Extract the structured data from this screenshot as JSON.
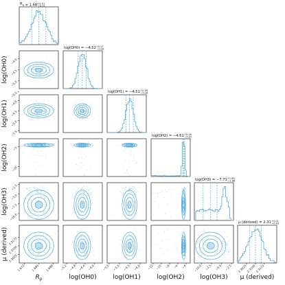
{
  "chart_data": {
    "type": "corner",
    "color": "#4fa8d6",
    "parameters": [
      {
        "name": "R_p",
        "axis_label": "R",
        "axis_sub": "p",
        "title_prefix": "R",
        "title_sub": "p",
        "title_value": " = 1.68",
        "title_plus": "+0.01",
        "title_minus": "−0.01",
        "median": 1.68,
        "q16": 1.676,
        "q84": 1.684,
        "sigma": 0.0042,
        "range": [
          1.669,
          1.691
        ],
        "ticks": [
          1.672,
          1.68,
          1.688
        ],
        "tick_labels": [
          "1.672",
          "1.680",
          "1.688"
        ]
      },
      {
        "name": "log(OH0)",
        "axis_label": "log(OH0)",
        "title_prefix": "log(OH0)",
        "title_value": " = −4.52",
        "title_plus": "+0.17",
        "title_minus": "−0.18",
        "median": -4.52,
        "q16": -4.7,
        "q84": -4.35,
        "sigma": 0.18,
        "range": [
          -5.35,
          -3.65
        ],
        "ticks": [
          -5.2,
          -4.8,
          -4.4,
          -4.0
        ],
        "tick_labels": [
          "−5.2",
          "−4.8",
          "−4.4",
          "−4.0"
        ],
        "ytick_labels": [
          "−4.0",
          "−4.5",
          "−5.0",
          "−5.5"
        ],
        "yticks": [
          -4.0,
          -4.5,
          -5.0,
          -5.5
        ]
      },
      {
        "name": "log(OH1)",
        "axis_label": "log(OH1)",
        "title_prefix": "log(OH1)",
        "title_value": " = −4.51",
        "title_plus": "+0.18",
        "title_minus": "−0.18",
        "median": -4.51,
        "q16": -4.69,
        "q84": -4.33,
        "sigma": 0.18,
        "range": [
          -5.6,
          -3.7
        ],
        "ticks": [
          -5.5,
          -5.0,
          -4.5,
          -4.0
        ],
        "tick_labels": [
          "−5.5",
          "−5.0",
          "−4.5",
          "−4.0"
        ],
        "ytick_labels": [
          "−4.0",
          "−4.5",
          "−5.0",
          "−5.5"
        ],
        "yticks": [
          -4.0,
          -4.5,
          -5.0,
          -5.5
        ]
      },
      {
        "name": "log(OH2)",
        "axis_label": "log(OH2)",
        "title_prefix": "log(OH2)",
        "title_value": " = −4.61",
        "title_plus": "+0.26",
        "title_minus": "−0.22",
        "median": -4.61,
        "q16": -4.83,
        "q84": -4.35,
        "sigma": 0.25,
        "range": [
          -12.5,
          -3.0
        ],
        "ticks": [
          -12,
          -10,
          -8,
          -6,
          -4
        ],
        "tick_labels": [
          "−12",
          "−10",
          "−8",
          "−6",
          "−4"
        ],
        "ytick_labels": [
          "−5",
          "−10"
        ],
        "yticks": [
          -5,
          -10
        ]
      },
      {
        "name": "log(OH3)",
        "axis_label": "log(OH3)",
        "title_prefix": "log(OH3)",
        "title_value": " = −7.71",
        "title_plus": "+1.60",
        "title_minus": "−1.88",
        "median": -7.71,
        "q16": -9.59,
        "q84": -6.11,
        "sigma": 1.9,
        "range": [
          -11.8,
          -2.0
        ],
        "ticks": [
          -10.0,
          -7.5,
          -5.0,
          -2.5
        ],
        "tick_labels": [
          "−10.0",
          "−7.5",
          "−5.0",
          "−2.5"
        ],
        "ytick_labels": [
          "−2.5",
          "−5.0",
          "−7.5",
          "−10.0"
        ],
        "yticks": [
          -2.5,
          -5.0,
          -7.5,
          -10.0
        ]
      },
      {
        "name": "mu",
        "axis_label": "μ (derived)",
        "title_prefix": "μ (derived)",
        "title_value": " = 2.31",
        "title_plus": "+0.01",
        "title_minus": "−0.01",
        "median": 2.31,
        "q16": 2.305,
        "q84": 2.315,
        "sigma": 0.006,
        "range": [
          2.295,
          2.328
        ],
        "ticks": [
          2.3025,
          2.31,
          2.3175
        ],
        "tick_labels": [
          "2.3025",
          "2.3100",
          "2.3175"
        ],
        "ytick_labels": [
          "2.3175",
          "2.3100",
          "2.3025"
        ],
        "yticks": [
          2.3175,
          2.31,
          2.3025
        ]
      }
    ],
    "ytick_labels_row": {
      "1": [
        "−4.0",
        "−4.5",
        "−5.0",
        "−5.5"
      ],
      "2": [
        "−4.0",
        "−4.5",
        "−5.0",
        "−5.5"
      ],
      "3": [
        "−5",
        "−10"
      ],
      "4": [
        "−2.5",
        "−5.0",
        "−7.5",
        "−10.0"
      ],
      "5": [
        "2.3175",
        "2.3100",
        "2.3025"
      ]
    }
  }
}
